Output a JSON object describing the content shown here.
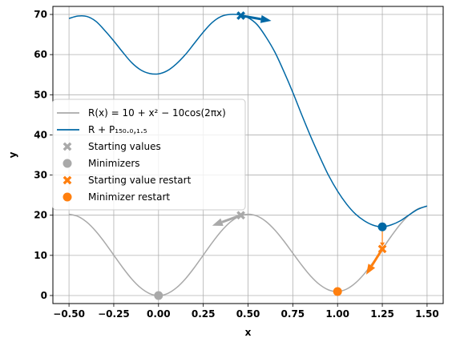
{
  "chart_data": {
    "type": "line",
    "xlabel": "x",
    "ylabel": "y",
    "xlim": [
      -0.59,
      1.59
    ],
    "ylim": [
      -2,
      72
    ],
    "grid": true,
    "xticks": [
      {
        "value": -0.5,
        "label": "−0.50"
      },
      {
        "value": -0.25,
        "label": "−0.25"
      },
      {
        "value": 0.0,
        "label": "0.00"
      },
      {
        "value": 0.25,
        "label": "0.25"
      },
      {
        "value": 0.5,
        "label": "0.50"
      },
      {
        "value": 0.75,
        "label": "0.75"
      },
      {
        "value": 1.0,
        "label": "1.00"
      },
      {
        "value": 1.25,
        "label": "1.25"
      },
      {
        "value": 1.5,
        "label": "1.50"
      }
    ],
    "yticks": [
      {
        "value": 0,
        "label": "0"
      },
      {
        "value": 10,
        "label": "10"
      },
      {
        "value": 20,
        "label": "20"
      },
      {
        "value": 30,
        "label": "30"
      },
      {
        "value": 40,
        "label": "40"
      },
      {
        "value": 50,
        "label": "50"
      },
      {
        "value": 60,
        "label": "60"
      },
      {
        "value": 70,
        "label": "70"
      }
    ],
    "series": [
      {
        "name": "R(x) = 10 + x² − 10cos(2πx)",
        "color": "#a9a9a9",
        "x": [
          -0.5,
          -0.45,
          -0.4,
          -0.35,
          -0.3,
          -0.25,
          -0.2,
          -0.15,
          -0.1,
          -0.05,
          0.0,
          0.05,
          0.1,
          0.15,
          0.2,
          0.25,
          0.3,
          0.35,
          0.4,
          0.45,
          0.5,
          0.55,
          0.6,
          0.65,
          0.7,
          0.75,
          0.8,
          0.85,
          0.9,
          0.95,
          1.0,
          1.05,
          1.1,
          1.15,
          1.2,
          1.25,
          1.3,
          1.35,
          1.4,
          1.45,
          1.5
        ],
        "y": [
          20.25,
          19.71,
          18.25,
          16.0,
          13.18,
          10.06,
          6.95,
          4.14,
          1.92,
          0.49,
          0.0,
          0.49,
          1.92,
          4.14,
          6.95,
          10.06,
          13.18,
          16.0,
          18.25,
          19.71,
          20.25,
          19.81,
          18.45,
          16.3,
          13.58,
          10.56,
          7.55,
          4.84,
          2.72,
          1.39,
          1.0,
          1.59,
          3.12,
          5.44,
          8.35,
          11.56,
          14.78,
          17.72,
          20.05,
          21.61,
          22.25
        ]
      },
      {
        "name": "R + P₁₅₀.₀,₁.₅",
        "color": "#0068a5",
        "x": [
          -0.5,
          -0.45,
          -0.4,
          -0.35,
          -0.3,
          -0.25,
          -0.2,
          -0.15,
          -0.1,
          -0.05,
          0.0,
          0.05,
          0.1,
          0.15,
          0.2,
          0.25,
          0.3,
          0.35,
          0.4,
          0.45,
          0.5,
          0.55,
          0.6,
          0.65,
          0.7,
          0.75,
          0.8,
          0.85,
          0.9,
          0.95,
          1.0,
          1.05,
          1.1,
          1.15,
          1.2,
          1.25,
          1.3,
          1.35,
          1.4,
          1.45,
          1.5
        ],
        "y": [
          69.0,
          69.6,
          69.5,
          68.3,
          66.0,
          63.4,
          60.6,
          58.0,
          56.2,
          55.3,
          55.2,
          56.0,
          57.7,
          60.0,
          62.8,
          65.6,
          68.0,
          69.5,
          70.0,
          69.9,
          69.2,
          67.5,
          64.4,
          60.6,
          55.8,
          50.6,
          45.0,
          39.6,
          34.6,
          29.9,
          26.0,
          22.8,
          20.3,
          18.6,
          17.5,
          17.1,
          17.6,
          18.6,
          20.1,
          21.5,
          22.3
        ]
      }
    ],
    "markers": [
      {
        "name": "Starting values",
        "shape": "x",
        "color": "#a9a9a9",
        "points": [
          {
            "x": 0.46,
            "y": 20.0
          }
        ]
      },
      {
        "name": "Minimizers",
        "shape": "circle",
        "color": "#a9a9a9",
        "points": [
          {
            "x": 0.0,
            "y": 0.0
          }
        ]
      },
      {
        "name": "Starting value restart",
        "shape": "x",
        "color": "#ff7f0e",
        "points": [
          {
            "x": 1.25,
            "y": 11.6
          }
        ]
      },
      {
        "name": "Minimizer restart",
        "shape": "circle",
        "color": "#ff7f0e",
        "points": [
          {
            "x": 1.0,
            "y": 1.0
          }
        ]
      },
      {
        "name": "",
        "shape": "x",
        "color": "#0068a5",
        "points": [
          {
            "x": 0.46,
            "y": 69.7
          }
        ]
      },
      {
        "name": "",
        "shape": "circle",
        "color": "#0068a5",
        "points": [
          {
            "x": 1.25,
            "y": 17.1
          }
        ]
      }
    ],
    "arrows": [
      {
        "color": "#a9a9a9",
        "from": {
          "x": 0.46,
          "y": 20.0
        },
        "to": {
          "x": 0.3,
          "y": 17.4
        }
      },
      {
        "color": "#0068a5",
        "from": {
          "x": 0.46,
          "y": 69.7
        },
        "to": {
          "x": 0.63,
          "y": 68.4
        }
      },
      {
        "color": "#ff7f0e",
        "from": {
          "x": 1.25,
          "y": 11.6
        },
        "to": {
          "x": 1.16,
          "y": 5.2
        }
      },
      {
        "color": "#ff7f0e",
        "from": {
          "x": 1.25,
          "y": 17.1
        },
        "to": {
          "x": 1.25,
          "y": 12.2
        },
        "thin": true
      }
    ],
    "legend": {
      "placement": "center-left",
      "entries": [
        {
          "label": "R(x) = 10 + x² − 10cos(2πx)",
          "kind": "line",
          "color": "#a9a9a9"
        },
        {
          "label": "R + P₁₅₀.₀,₁.₅",
          "kind": "line",
          "color": "#0068a5"
        },
        {
          "label": "Starting values",
          "kind": "x",
          "color": "#a9a9a9"
        },
        {
          "label": "Minimizers",
          "kind": "circle",
          "color": "#a9a9a9"
        },
        {
          "label": "Starting value restart",
          "kind": "x",
          "color": "#ff7f0e"
        },
        {
          "label": "Minimizer restart",
          "kind": "circle",
          "color": "#ff7f0e"
        }
      ]
    }
  }
}
